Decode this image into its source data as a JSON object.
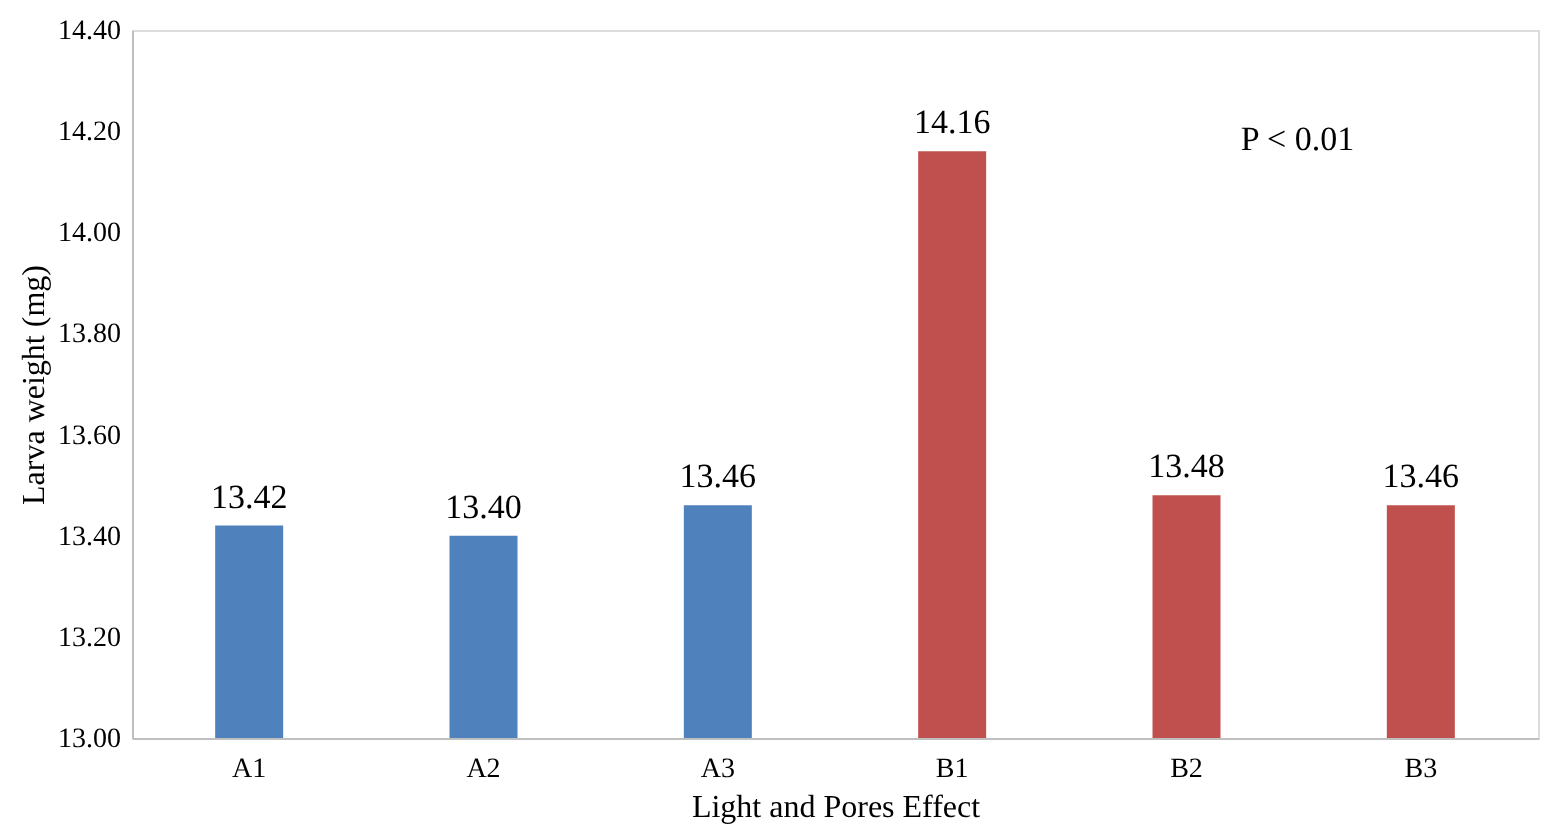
{
  "chart_data": {
    "type": "bar",
    "xlabel": "Light and Pores Effect",
    "ylabel": "Larva weight (mg)",
    "categories": [
      "A1",
      "A2",
      "A3",
      "B1",
      "B2",
      "B3"
    ],
    "values": [
      13.42,
      13.4,
      13.46,
      14.16,
      13.48,
      13.46
    ],
    "colors": [
      "#4f81bd",
      "#4f81bd",
      "#4f81bd",
      "#c0504d",
      "#c0504d",
      "#c0504d"
    ],
    "ylim": [
      13.0,
      14.4
    ],
    "yticks": [
      {
        "value": 13.0,
        "label": "13.00"
      },
      {
        "value": 13.2,
        "label": "13.20"
      },
      {
        "value": 13.4,
        "label": "13.40"
      },
      {
        "value": 13.6,
        "label": "13.60"
      },
      {
        "value": 13.8,
        "label": "13.80"
      },
      {
        "value": 14.0,
        "label": "14.00"
      },
      {
        "value": 14.2,
        "label": "14.20"
      },
      {
        "value": 14.4,
        "label": "14.40"
      }
    ],
    "value_labels": [
      "13.42",
      "13.40",
      "13.46",
      "14.16",
      "13.48",
      "13.46"
    ],
    "grid": false,
    "annotations": [
      "P < 0.01"
    ]
  }
}
